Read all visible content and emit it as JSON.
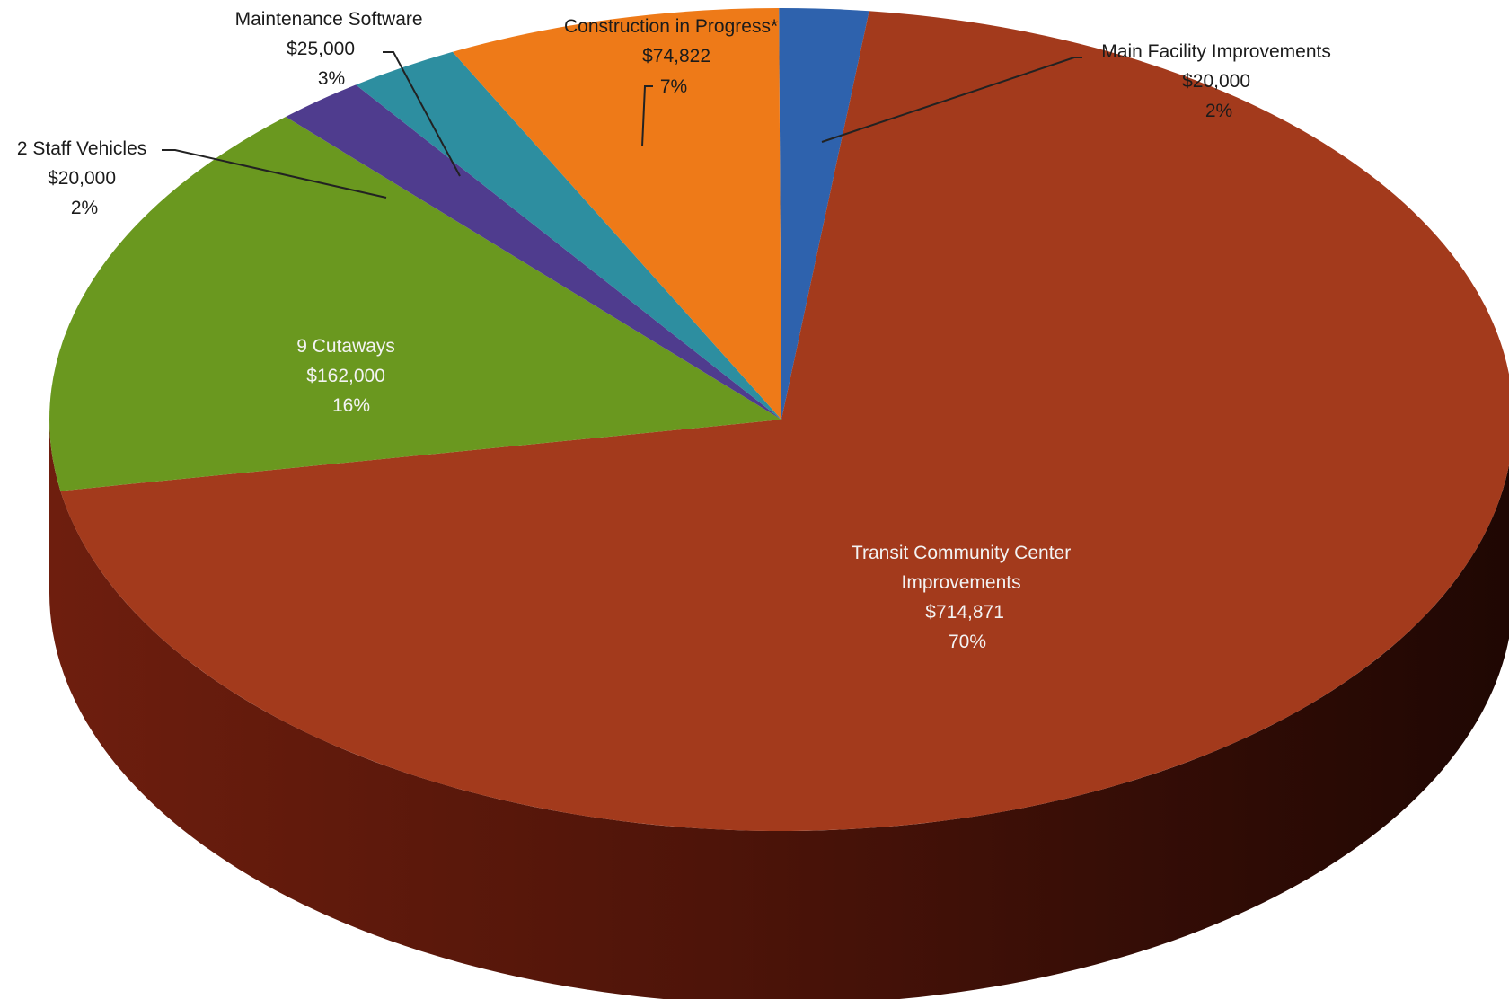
{
  "chart_data": {
    "type": "pie",
    "style": "3d",
    "title": "",
    "legend": "none",
    "slices": [
      {
        "category": "Main Facility Improvements",
        "amount_label": "$20,000",
        "percent_label": "2%",
        "value": 20000,
        "color": "#2e62ad"
      },
      {
        "category": "Transit Community Center Improvements",
        "amount_label": "$714,871",
        "percent_label": "70%",
        "value": 714871,
        "color": "#a33a1c"
      },
      {
        "category": "9 Cutaways",
        "amount_label": "$162,000",
        "percent_label": "16%",
        "value": 162000,
        "color": "#6a981f"
      },
      {
        "category": "2 Staff Vehicles",
        "amount_label": "$20,000",
        "percent_label": "2%",
        "value": 20000,
        "color": "#4f3c8e"
      },
      {
        "category": "Maintenance Software",
        "amount_label": "$25,000",
        "percent_label": "3%",
        "value": 25000,
        "color": "#2d8ea0"
      },
      {
        "category": "Construction in Progress*",
        "amount_label": "$74,822",
        "percent_label": "7%",
        "value": 74822,
        "color": "#ee7a18"
      }
    ]
  }
}
